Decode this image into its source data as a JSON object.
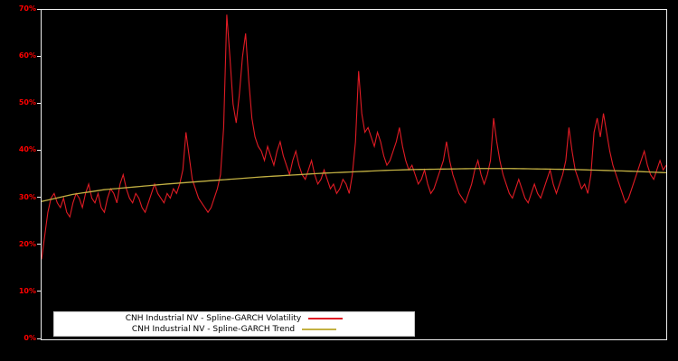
{
  "chart_data": {
    "type": "line",
    "title": "",
    "xlabel": "",
    "ylabel": "",
    "ylim": [
      0,
      70
    ],
    "yticks": [
      0,
      10,
      20,
      30,
      40,
      50,
      60,
      70
    ],
    "ytick_labels": [
      "0%",
      "10%",
      "20%",
      "30%",
      "40%",
      "50%",
      "60%",
      "70%"
    ],
    "background": "#000000",
    "frame_color": "#ededed",
    "tick_label_color": "#ff0000",
    "grid": false,
    "legend_position": "bottom-left",
    "series": [
      {
        "name": "CNH Industrial NV - Spline-GARCH Volatility",
        "color": "#e01b24",
        "values": [
          17,
          22,
          27,
          30,
          31,
          29,
          28,
          30,
          27,
          26,
          29,
          31,
          30,
          28,
          31,
          33,
          30,
          29,
          31,
          28,
          27,
          30,
          32,
          31,
          29,
          33,
          35,
          32,
          30,
          29,
          31,
          30,
          28,
          27,
          29,
          31,
          33,
          31,
          30,
          29,
          31,
          30,
          32,
          31,
          33,
          36,
          44,
          39,
          34,
          32,
          30,
          29,
          28,
          27,
          28,
          30,
          32,
          35,
          45,
          69,
          60,
          50,
          46,
          52,
          60,
          65,
          55,
          47,
          43,
          41,
          40,
          38,
          41,
          39,
          37,
          40,
          42,
          39,
          37,
          35,
          38,
          40,
          37,
          35,
          34,
          36,
          38,
          35,
          33,
          34,
          36,
          34,
          32,
          33,
          31,
          32,
          34,
          33,
          31,
          35,
          42,
          57,
          48,
          44,
          45,
          43,
          41,
          44,
          42,
          39,
          37,
          38,
          40,
          42,
          45,
          41,
          38,
          36,
          37,
          35,
          33,
          34,
          36,
          33,
          31,
          32,
          34,
          36,
          38,
          42,
          38,
          35,
          33,
          31,
          30,
          29,
          31,
          33,
          36,
          38,
          35,
          33,
          35,
          38,
          47,
          42,
          38,
          35,
          33,
          31,
          30,
          32,
          34,
          32,
          30,
          29,
          31,
          33,
          31,
          30,
          32,
          34,
          36,
          33,
          31,
          33,
          35,
          38,
          45,
          40,
          36,
          34,
          32,
          33,
          31,
          35,
          44,
          47,
          43,
          48,
          44,
          40,
          37,
          35,
          33,
          31,
          29,
          30,
          32,
          34,
          36,
          38,
          40,
          37,
          35,
          34,
          36,
          38,
          36,
          37
        ]
      },
      {
        "name": "CNH Industrial NV - Spline-GARCH Trend",
        "color": "#c3b143",
        "control_points": [
          [
            0,
            29.3
          ],
          [
            0.05,
            30.8
          ],
          [
            0.1,
            31.8
          ],
          [
            0.15,
            32.4
          ],
          [
            0.2,
            33.0
          ],
          [
            0.25,
            33.5
          ],
          [
            0.3,
            34.0
          ],
          [
            0.35,
            34.5
          ],
          [
            0.4,
            34.9
          ],
          [
            0.45,
            35.3
          ],
          [
            0.5,
            35.6
          ],
          [
            0.55,
            35.9
          ],
          [
            0.6,
            36.1
          ],
          [
            0.65,
            36.2
          ],
          [
            0.7,
            36.3
          ],
          [
            0.75,
            36.3
          ],
          [
            0.8,
            36.2
          ],
          [
            0.85,
            36.1
          ],
          [
            0.9,
            35.9
          ],
          [
            0.95,
            35.7
          ],
          [
            1,
            35.4
          ]
        ]
      }
    ]
  }
}
